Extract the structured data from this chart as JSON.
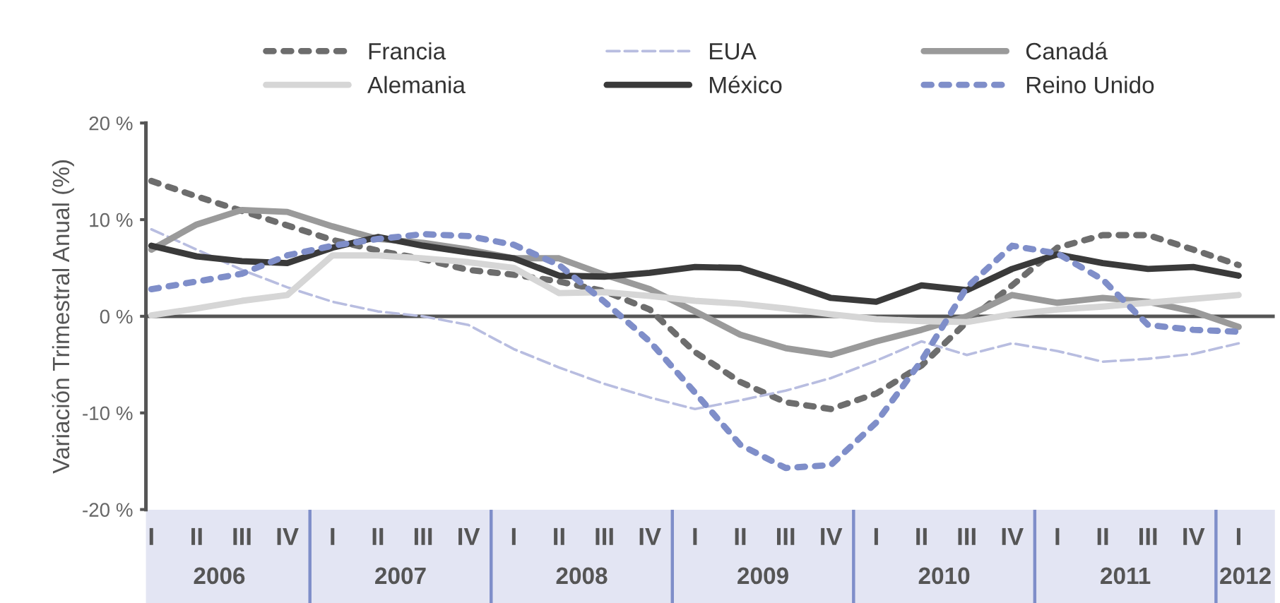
{
  "chart_data": {
    "type": "line",
    "ylabel": "Variación Trimestral Anual (%)",
    "categories": [
      "I",
      "II",
      "III",
      "IV",
      "I",
      "II",
      "III",
      "IV",
      "I",
      "II",
      "III",
      "IV",
      "I",
      "II",
      "III",
      "IV",
      "I",
      "II",
      "III",
      "IV",
      "I",
      "II",
      "III",
      "IV",
      "I"
    ],
    "annotations": [
      "2006",
      "2007",
      "2008",
      "2009",
      "2010",
      "2011",
      "2012"
    ],
    "ylim": [
      -20,
      20
    ],
    "yticks": [
      {
        "value": -20,
        "label": "-20 %"
      },
      {
        "value": -10,
        "label": "-10 %"
      },
      {
        "value": 0,
        "label": "0 %"
      },
      {
        "value": 10,
        "label": "10 %"
      },
      {
        "value": 20,
        "label": "20 %"
      }
    ],
    "ref_lines": [
      {
        "axis": "y",
        "value": 0,
        "color": "#555555",
        "line_style": "solid"
      }
    ],
    "grid": false,
    "legend": "top",
    "series": [
      {
        "name": "Francia",
        "color": "#6d6d6d",
        "line_style": "dotted",
        "values": [
          14.0,
          12.4,
          10.9,
          9.4,
          7.9,
          6.8,
          5.9,
          4.8,
          4.3,
          3.6,
          2.6,
          0.7,
          -3.7,
          -6.8,
          -8.9,
          -9.6,
          -8.0,
          -5.1,
          -0.6,
          3.2,
          7.1,
          8.4,
          8.4,
          6.9,
          5.3
        ]
      },
      {
        "name": "EUA",
        "color": "#b8bde0",
        "line_style": "dashed",
        "values": [
          9.0,
          6.9,
          4.8,
          3.0,
          1.5,
          0.5,
          0.0,
          -0.9,
          -3.4,
          -5.3,
          -7.0,
          -8.4,
          -9.6,
          -8.7,
          -7.7,
          -6.4,
          -4.6,
          -2.6,
          -4.0,
          -2.8,
          -3.6,
          -4.7,
          -4.4,
          -3.9,
          -2.8
        ]
      },
      {
        "name": "Canadá",
        "color": "#9a9a9a",
        "line_style": "solid",
        "values": [
          6.9,
          9.5,
          11.0,
          10.8,
          9.3,
          8.0,
          7.6,
          6.9,
          6.0,
          6.0,
          4.3,
          2.8,
          0.5,
          -1.9,
          -3.3,
          -4.0,
          -2.6,
          -1.4,
          0.0,
          2.2,
          1.4,
          1.9,
          1.5,
          0.5,
          -1.1
        ]
      },
      {
        "name": "Alemania",
        "color": "#d6d6d6",
        "line_style": "solid",
        "values": [
          0.1,
          0.8,
          1.6,
          2.2,
          6.3,
          6.3,
          6.0,
          5.6,
          5.0,
          2.4,
          2.5,
          2.1,
          1.6,
          1.3,
          0.8,
          0.2,
          -0.3,
          -0.5,
          -0.6,
          0.2,
          0.7,
          1.0,
          1.4,
          1.8,
          2.2
        ]
      },
      {
        "name": "México",
        "color": "#3a3a3a",
        "line_style": "solid",
        "values": [
          7.3,
          6.2,
          5.7,
          5.5,
          7.1,
          8.2,
          7.3,
          6.6,
          6.0,
          4.2,
          4.1,
          4.5,
          5.1,
          5.0,
          3.5,
          1.9,
          1.5,
          3.2,
          2.7,
          4.9,
          6.4,
          5.5,
          4.9,
          5.1,
          4.2
        ]
      },
      {
        "name": "Reino Unido",
        "color": "#7f8ec9",
        "line_style": "dotted",
        "values": [
          2.8,
          3.6,
          4.4,
          6.3,
          7.3,
          8.0,
          8.5,
          8.3,
          7.4,
          5.3,
          1.5,
          -2.6,
          -7.9,
          -13.3,
          -15.7,
          -15.4,
          -11.0,
          -4.6,
          3.0,
          7.3,
          6.5,
          3.8,
          -0.9,
          -1.4,
          -1.6
        ]
      }
    ]
  }
}
